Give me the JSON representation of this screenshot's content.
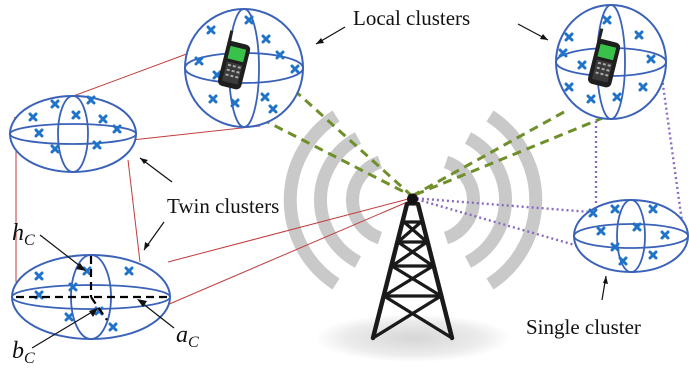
{
  "labels": {
    "local_clusters": "Local clusters",
    "twin_clusters": "Twin clusters",
    "single_cluster": "Single cluster",
    "h_main": "h",
    "h_sub": "C",
    "b_main": "b",
    "b_sub": "C",
    "a_main": "a",
    "a_sub": "C"
  },
  "colors": {
    "cluster_outline": "#3a62b8",
    "scatterer_mark": "#1f73c8",
    "twin_link": "#c23b3b",
    "local_link": "#6f8f2a",
    "single_link": "#8a6bc2",
    "tower": "#1a1a1a"
  },
  "icons": [
    "mobile-phone-icon",
    "base-station-tower-icon",
    "scatterer-x-icon"
  ]
}
